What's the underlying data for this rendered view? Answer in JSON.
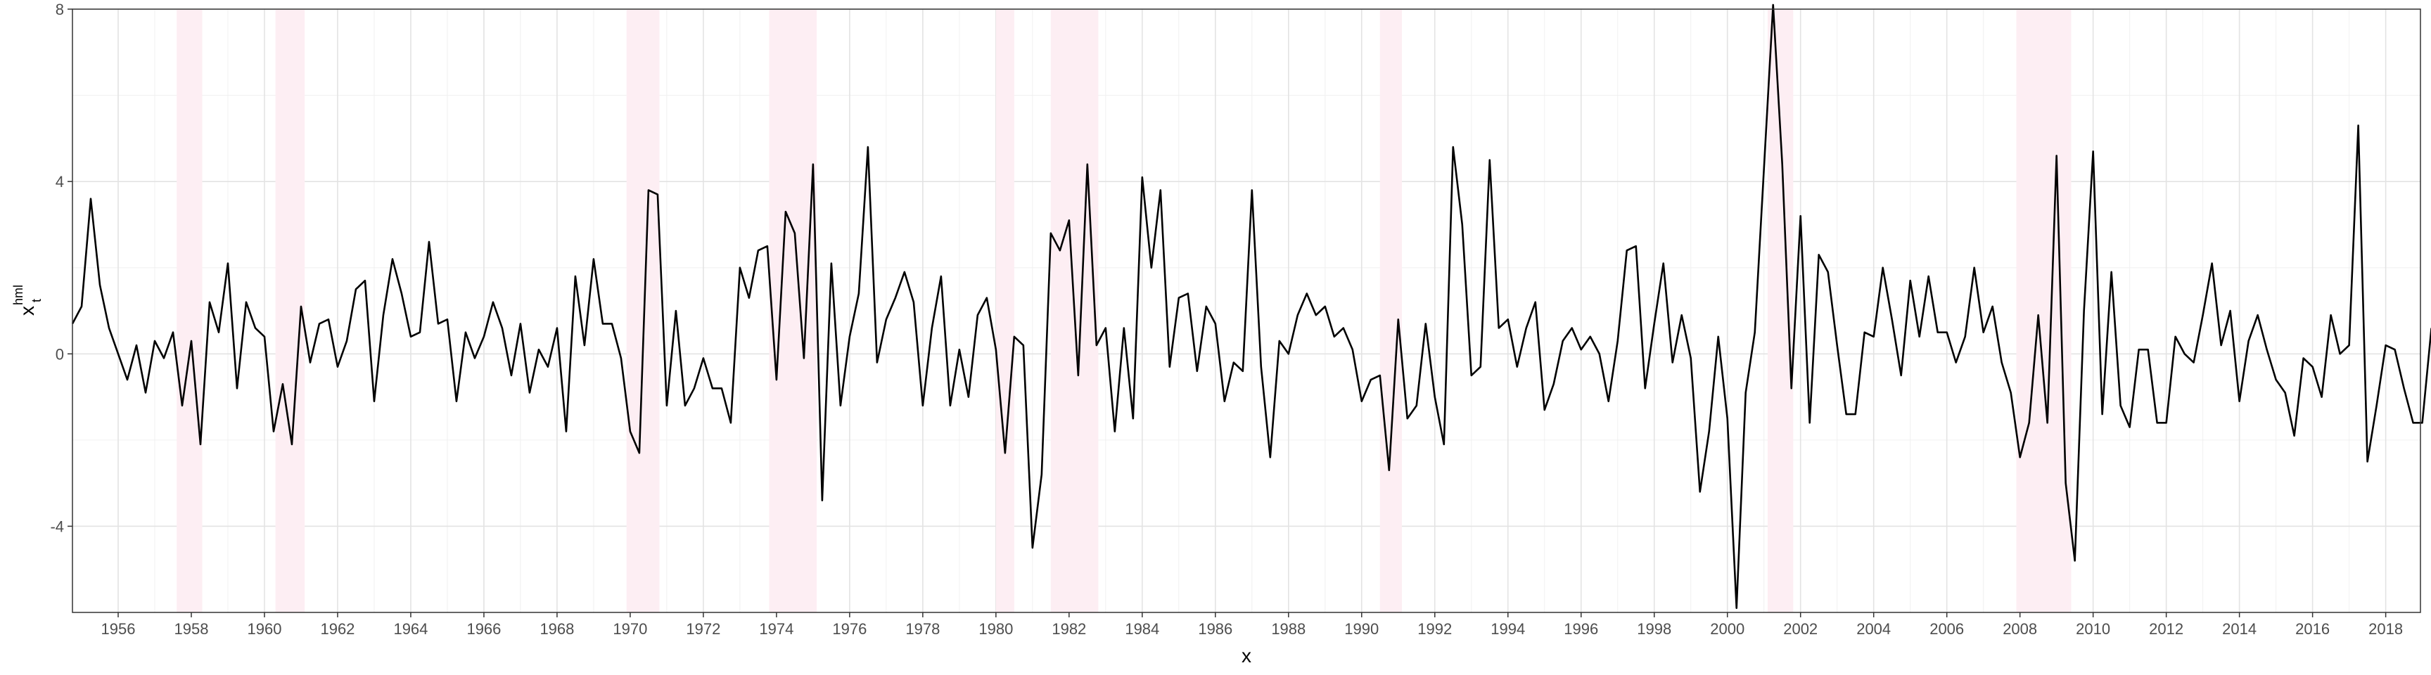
{
  "chart_data": {
    "type": "line",
    "title": "",
    "xlabel": "x",
    "ylabel": "x",
    "ylabel_sub": "t",
    "ylabel_sup": "hml",
    "xlim": [
      1954.75,
      2018.95
    ],
    "ylim": [
      -6.0,
      8.0
    ],
    "x_ticks": [
      1956,
      1958,
      1960,
      1962,
      1964,
      1966,
      1968,
      1970,
      1972,
      1974,
      1976,
      1978,
      1980,
      1982,
      1984,
      1986,
      1988,
      1990,
      1992,
      1994,
      1996,
      1998,
      2000,
      2002,
      2004,
      2006,
      2008,
      2010,
      2012,
      2014,
      2016,
      2018
    ],
    "y_ticks": [
      -4,
      0,
      4,
      8
    ],
    "grid": true,
    "line_color": "#000000",
    "shade_color": "#fdeef3",
    "recessions": [
      [
        1957.6,
        1958.3
      ],
      [
        1960.3,
        1961.1
      ],
      [
        1969.9,
        1970.8
      ],
      [
        1973.8,
        1975.1
      ],
      [
        1980.0,
        1980.5
      ],
      [
        1981.5,
        1982.8
      ],
      [
        1990.5,
        1991.1
      ],
      [
        2001.1,
        2001.8
      ],
      [
        2007.9,
        2009.4
      ]
    ],
    "x_start": 1954.75,
    "x_step": 0.25,
    "values": [
      0.7,
      1.1,
      3.6,
      1.6,
      0.6,
      0.0,
      -0.6,
      0.2,
      -0.9,
      0.3,
      -0.1,
      0.5,
      -1.2,
      0.3,
      -2.1,
      1.2,
      0.5,
      2.1,
      -0.8,
      1.2,
      0.6,
      0.4,
      -1.8,
      -0.7,
      -2.1,
      1.1,
      -0.2,
      0.7,
      0.8,
      -0.3,
      0.3,
      1.5,
      1.7,
      -1.1,
      0.9,
      2.2,
      1.4,
      0.4,
      0.5,
      2.6,
      0.7,
      0.8,
      -1.1,
      0.5,
      -0.1,
      0.4,
      1.2,
      0.6,
      -0.5,
      0.7,
      -0.9,
      0.1,
      -0.3,
      0.6,
      -1.8,
      1.8,
      0.2,
      2.2,
      0.7,
      0.7,
      -0.1,
      -1.8,
      -2.3,
      3.8,
      3.7,
      -1.2,
      1.0,
      -1.2,
      -0.8,
      -0.1,
      -0.8,
      -0.8,
      -1.6,
      2.0,
      1.3,
      2.4,
      2.5,
      -0.6,
      3.3,
      2.8,
      -0.1,
      4.4,
      -3.4,
      2.1,
      -1.2,
      0.4,
      1.4,
      4.8,
      -0.2,
      0.8,
      1.3,
      1.9,
      1.2,
      -1.2,
      0.6,
      1.8,
      -1.2,
      0.1,
      -1.0,
      0.9,
      1.3,
      0.1,
      -2.3,
      0.4,
      0.2,
      -4.5,
      -2.8,
      2.8,
      2.4,
      3.1,
      -0.5,
      4.4,
      0.2,
      0.6,
      -1.8,
      0.6,
      -1.5,
      4.1,
      2.0,
      3.8,
      -0.3,
      1.3,
      1.4,
      -0.4,
      1.1,
      0.7,
      -1.1,
      -0.2,
      -0.4,
      3.8,
      -0.3,
      -2.4,
      0.3,
      0.0,
      0.9,
      1.4,
      0.9,
      1.1,
      0.4,
      0.6,
      0.1,
      -1.1,
      -0.6,
      -0.5,
      -2.7,
      0.8,
      -1.5,
      -1.2,
      0.7,
      -1.0,
      -2.1,
      4.8,
      3.0,
      -0.5,
      -0.3,
      4.5,
      0.6,
      0.8,
      -0.3,
      0.6,
      1.2,
      -1.3,
      -0.7,
      0.3,
      0.6,
      0.1,
      0.4,
      0.0,
      -1.1,
      0.3,
      2.4,
      2.5,
      -0.8,
      0.7,
      2.1,
      -0.2,
      0.9,
      -0.1,
      -3.2,
      -1.8,
      0.4,
      -1.5,
      -5.9,
      -0.9,
      0.5,
      4.3,
      8.1,
      4.4,
      -0.8,
      3.2,
      -1.6,
      2.3,
      1.9,
      0.2,
      -1.4,
      -1.4,
      0.5,
      0.4,
      2.0,
      0.8,
      -0.5,
      1.7,
      0.4,
      1.8,
      0.5,
      0.5,
      -0.2,
      0.4,
      2.0,
      0.5,
      1.1,
      -0.2,
      -0.9,
      -2.4,
      -1.6,
      0.9,
      -1.6,
      4.6,
      -3.0,
      -4.8,
      1.0,
      4.7,
      -1.4,
      1.9,
      -1.2,
      -1.7,
      0.1,
      0.1,
      -1.6,
      -1.6,
      0.4,
      0.0,
      -0.2,
      0.9,
      2.1,
      0.2,
      1.0,
      -1.1,
      0.3,
      0.9,
      0.1,
      -0.6,
      -0.9,
      -1.9,
      -0.1,
      -0.3,
      -1.0,
      0.9,
      0.0,
      0.2,
      5.3,
      -2.5,
      -1.2,
      0.2,
      0.1,
      -0.8,
      -1.6,
      -1.6,
      0.6
    ]
  }
}
